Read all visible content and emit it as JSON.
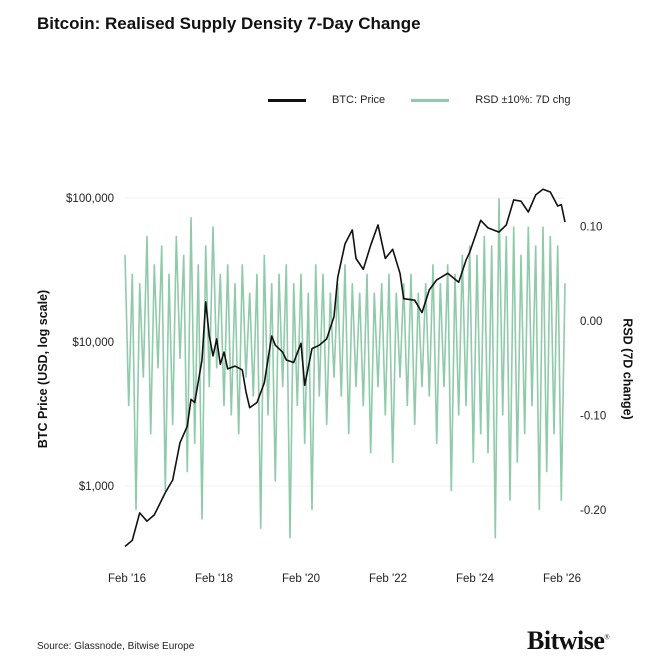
{
  "title": "Bitcoin: Realised Supply Density 7-Day Change",
  "source": "Source: Glassnode, Bitwise Europe",
  "logo": "Bitwise",
  "chart_data": {
    "type": "line",
    "title": "Bitcoin: Realised Supply Density 7-Day Change",
    "legend_position": "top-right",
    "grid": true,
    "x_ticks": [
      "Feb '16",
      "Feb '18",
      "Feb '20",
      "Feb '22",
      "Feb '24",
      "Feb '26"
    ],
    "x_range": [
      "2016-02",
      "2026-02"
    ],
    "y_left": {
      "label": "BTC Price (USD, log scale)",
      "scale": "log",
      "range": [
        300,
        150000
      ],
      "ticks": [
        1000,
        10000,
        100000
      ],
      "tick_labels": [
        "$1,000",
        "$10,000",
        "$100,000"
      ]
    },
    "y_right": {
      "label": "RSD (7D change)",
      "range": [
        -0.25,
        0.15
      ],
      "ticks": [
        0.1,
        0.0,
        -0.1,
        -0.2
      ],
      "tick_labels": [
        "0.10",
        "0.00",
        "-0.10",
        "-0.20"
      ]
    },
    "series": [
      {
        "name": "BTC: Price",
        "axis": "left",
        "color": "#111111",
        "points": [
          [
            "2016-02",
            380
          ],
          [
            "2016-04",
            420
          ],
          [
            "2016-06",
            650
          ],
          [
            "2016-08",
            570
          ],
          [
            "2016-10",
            630
          ],
          [
            "2017-01",
            900
          ],
          [
            "2017-03",
            1100
          ],
          [
            "2017-05",
            2000
          ],
          [
            "2017-07",
            2600
          ],
          [
            "2017-08",
            4000
          ],
          [
            "2017-09",
            3800
          ],
          [
            "2017-11",
            7500
          ],
          [
            "2017-12",
            19000
          ],
          [
            "2018-01",
            11000
          ],
          [
            "2018-02",
            8000
          ],
          [
            "2018-03",
            10500
          ],
          [
            "2018-04",
            7000
          ],
          [
            "2018-05",
            8500
          ],
          [
            "2018-06",
            6500
          ],
          [
            "2018-08",
            6800
          ],
          [
            "2018-10",
            6400
          ],
          [
            "2018-11",
            4500
          ],
          [
            "2018-12",
            3500
          ],
          [
            "2019-02",
            3800
          ],
          [
            "2019-04",
            5200
          ],
          [
            "2019-06",
            11000
          ],
          [
            "2019-07",
            9500
          ],
          [
            "2019-09",
            8500
          ],
          [
            "2019-10",
            7500
          ],
          [
            "2019-12",
            7200
          ],
          [
            "2020-02",
            9800
          ],
          [
            "2020-03",
            5000
          ],
          [
            "2020-05",
            9000
          ],
          [
            "2020-07",
            9500
          ],
          [
            "2020-09",
            10500
          ],
          [
            "2020-11",
            15000
          ],
          [
            "2020-12",
            28000
          ],
          [
            "2021-02",
            48000
          ],
          [
            "2021-04",
            60000
          ],
          [
            "2021-05",
            38000
          ],
          [
            "2021-07",
            32000
          ],
          [
            "2021-09",
            47000
          ],
          [
            "2021-11",
            65000
          ],
          [
            "2022-01",
            38000
          ],
          [
            "2022-03",
            44000
          ],
          [
            "2022-05",
            30000
          ],
          [
            "2022-06",
            20000
          ],
          [
            "2022-09",
            19500
          ],
          [
            "2022-11",
            16000
          ],
          [
            "2023-01",
            23000
          ],
          [
            "2023-03",
            27000
          ],
          [
            "2023-06",
            30000
          ],
          [
            "2023-09",
            26000
          ],
          [
            "2023-11",
            37000
          ],
          [
            "2023-12",
            42000
          ],
          [
            "2024-03",
            70000
          ],
          [
            "2024-05",
            62000
          ],
          [
            "2024-08",
            58000
          ],
          [
            "2024-10",
            65000
          ],
          [
            "2024-12",
            97000
          ],
          [
            "2025-02",
            95000
          ],
          [
            "2025-04",
            80000
          ],
          [
            "2025-06",
            105000
          ],
          [
            "2025-08",
            115000
          ],
          [
            "2025-10",
            110000
          ],
          [
            "2025-12",
            88000
          ],
          [
            "2026-01",
            90000
          ],
          [
            "2026-02",
            68000
          ]
        ]
      },
      {
        "name": "RSD ±10%: 7D chg",
        "axis": "right",
        "color": "#8fcaa9",
        "start": "2016-02",
        "step_months": 1,
        "values": [
          0.07,
          -0.09,
          0.05,
          -0.2,
          0.04,
          -0.06,
          0.09,
          -0.12,
          0.06,
          -0.05,
          0.08,
          -0.18,
          0.05,
          -0.11,
          0.09,
          -0.04,
          0.07,
          -0.16,
          0.11,
          -0.13,
          0.06,
          -0.21,
          0.08,
          -0.07,
          0.1,
          -0.05,
          0.05,
          -0.09,
          0.06,
          -0.1,
          0.04,
          -0.12,
          0.06,
          -0.06,
          0.03,
          -0.08,
          0.05,
          -0.22,
          0.07,
          -0.1,
          0.04,
          -0.17,
          0.05,
          -0.07,
          0.06,
          -0.23,
          0.04,
          -0.09,
          0.05,
          -0.13,
          0.03,
          -0.2,
          0.06,
          -0.08,
          0.05,
          -0.11,
          0.03,
          -0.06,
          0.04,
          -0.08,
          0.06,
          -0.12,
          0.04,
          -0.07,
          0.03,
          -0.09,
          0.05,
          -0.14,
          0.03,
          -0.07,
          0.04,
          -0.1,
          0.05,
          -0.15,
          0.03,
          -0.06,
          0.04,
          -0.09,
          0.05,
          -0.11,
          0.03,
          -0.07,
          0.04,
          -0.08,
          0.06,
          -0.13,
          0.04,
          -0.07,
          0.06,
          -0.18,
          0.05,
          -0.1,
          0.07,
          -0.09,
          0.08,
          -0.15,
          0.07,
          -0.12,
          0.09,
          -0.14,
          0.08,
          -0.23,
          0.13,
          -0.1,
          0.09,
          -0.19,
          0.1,
          -0.15,
          0.07,
          -0.12,
          0.1,
          -0.09,
          0.08,
          -0.2,
          0.1,
          -0.16,
          0.09,
          -0.12,
          0.08,
          -0.19,
          0.04
        ]
      }
    ]
  }
}
